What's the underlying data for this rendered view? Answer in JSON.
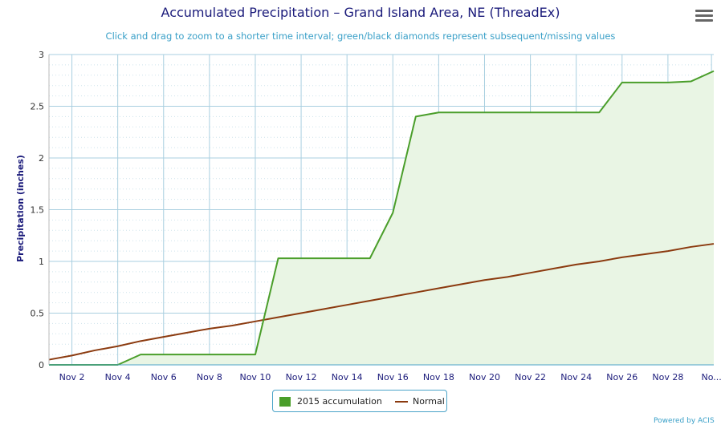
{
  "title": "Accumulated Precipitation – Grand Island Area, NE (ThreadEx)",
  "subtitle": "Click and drag to zoom to a shorter time interval; green/black diamonds represent subsequent/missing values",
  "credit": "Powered by ACIS",
  "colors": {
    "accumulation": "#4a9e2a",
    "normal": "#8b3a0f",
    "fill": "#e9f5e4",
    "grid": "#a9cfe0",
    "axis_text": "#1a1a7a"
  },
  "chart_data": {
    "type": "line",
    "ylabel": "Precipitation (inches)",
    "ylim": [
      0,
      3
    ],
    "y_ticks": [
      "0",
      "0.5",
      "1",
      "1.5",
      "2",
      "2.5",
      "3"
    ],
    "xlim": [
      1,
      30
    ],
    "x_ticks": [
      "Nov 2",
      "Nov 4",
      "Nov 6",
      "Nov 8",
      "Nov 10",
      "Nov 12",
      "Nov 14",
      "Nov 16",
      "Nov 18",
      "Nov 20",
      "Nov 22",
      "Nov 24",
      "Nov 26",
      "Nov 28",
      "No..."
    ],
    "x_tick_days": [
      2,
      4,
      6,
      8,
      10,
      12,
      14,
      16,
      18,
      20,
      22,
      24,
      26,
      28,
      29.9
    ],
    "grid": true,
    "legend_position": "bottom-center",
    "series": [
      {
        "name": "2015 accumulation",
        "x": [
          1,
          2,
          3,
          4,
          5,
          6,
          7,
          8,
          9,
          10,
          11,
          12,
          13,
          14,
          15,
          16,
          17,
          18,
          19,
          20,
          21,
          22,
          23,
          24,
          25,
          26,
          27,
          28,
          29,
          30
        ],
        "values": [
          0,
          0,
          0,
          0,
          0.1,
          0.1,
          0.1,
          0.1,
          0.1,
          0.1,
          1.03,
          1.03,
          1.03,
          1.03,
          1.03,
          1.47,
          2.4,
          2.44,
          2.44,
          2.44,
          2.44,
          2.44,
          2.44,
          2.44,
          2.44,
          2.73,
          2.73,
          2.73,
          2.74,
          2.84
        ]
      },
      {
        "name": "Normal",
        "x": [
          1,
          2,
          3,
          4,
          5,
          6,
          7,
          8,
          9,
          10,
          11,
          12,
          13,
          14,
          15,
          16,
          17,
          18,
          19,
          20,
          21,
          22,
          23,
          24,
          25,
          26,
          27,
          28,
          29,
          30
        ],
        "values": [
          0.05,
          0.09,
          0.14,
          0.18,
          0.23,
          0.27,
          0.31,
          0.35,
          0.38,
          0.42,
          0.46,
          0.5,
          0.54,
          0.58,
          0.62,
          0.66,
          0.7,
          0.74,
          0.78,
          0.82,
          0.85,
          0.89,
          0.93,
          0.97,
          1.0,
          1.04,
          1.07,
          1.1,
          1.14,
          1.17
        ]
      }
    ]
  }
}
